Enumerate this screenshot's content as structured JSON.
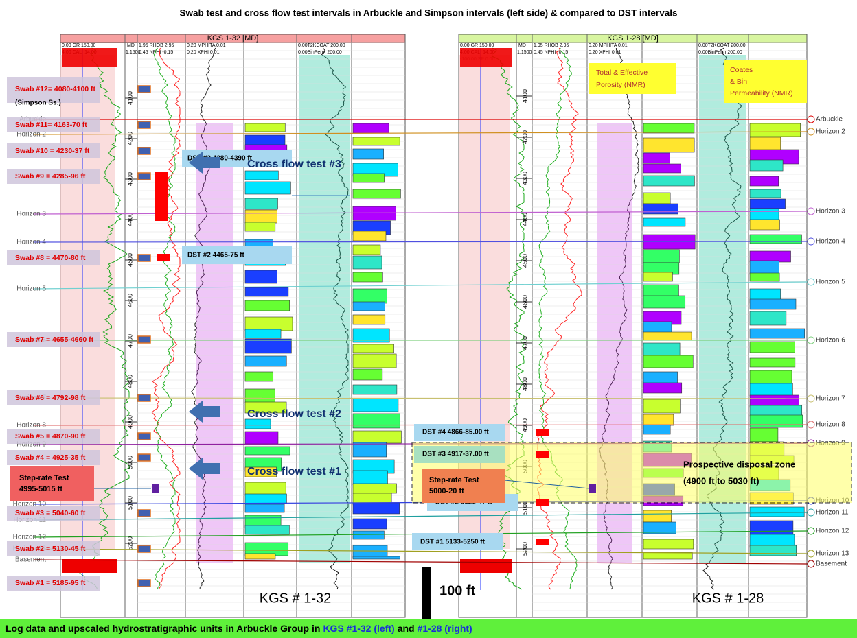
{
  "title": "Swab test and cross flow test intervals in Arbuckle and Simpson intervals (left side) & compared to DST intervals",
  "footer": {
    "text": "Log data and upscaled hydrostratigraphic units in Arbuckle Group in",
    "left_well": "KGS #1-32 (left)",
    "and": "and",
    "right_well": "#1-28 (right)"
  },
  "left_log": {
    "header": "KGS 1-32 [MD]",
    "tracks": [
      "0.00 GR 150.00",
      "4.00 CALI 14.00",
      "MD",
      "1:1500",
      "1.95 RHOB 2.95",
      "0.45 NPHI -0.15",
      "0.20 MPHITA 0.01",
      "0.20 XPHI 0.01",
      "0.00T2KCOAT 200.00",
      "0.00BinPerm 200.00"
    ],
    "depth_ticks": [
      4100,
      4200,
      4300,
      4400,
      4500,
      4600,
      4700,
      4800,
      4900,
      5000,
      5100,
      5200
    ],
    "well": "KGS # 1-32"
  },
  "right_log": {
    "header": "KGS 1-28 [MD]",
    "tracks": [
      "0.00 GR 150.00",
      "4.00 CALI 14.00",
      "-100.00 SP 0.00",
      "MD",
      "1:1500",
      "1.95 RHOB 2.95",
      "0.45 NPHI -0.15",
      "0.20 MPHITA 0.01",
      "0.20 XPHI 0.01",
      "0.00T2KCOAT 200.00",
      "0.00BinPerm 200.00"
    ],
    "depth_ticks": [
      4100,
      4200,
      4300,
      4400,
      4500,
      4600,
      4700,
      4800,
      4900,
      5000,
      5100,
      5200
    ],
    "well": "KGS # 1-28"
  },
  "swabs": [
    "Swab #12= 4080-4100 ft",
    "Swab #11= 4163-70 ft",
    "Swab #10 = 4230-37 ft",
    "Swab #9 = 4285-96 ft",
    "Swab #8 = 4470-80 ft",
    "Swab #7 = 4655-4660 ft",
    "Swab #6 = 4792-98 ft",
    "Swab #5 = 4870-90 ft",
    "Swab #4 = 4925-35 ft",
    "Swab #3 = 5040-60 ft",
    "Swab #2 = 5130-45 ft",
    "Swab #1 = 5185-95 ft"
  ],
  "swab_note": "(Simpson Ss.)",
  "horizons": [
    "Arbuckle",
    "Horizon 2",
    "Horizon 3",
    "Horizon 4",
    "Horizon 5",
    "Horizon 6",
    "Horizon 7",
    "Horizon 8",
    "Horizon 9",
    "Horizon 10",
    "Horizon 11",
    "Horizon 12",
    "Horizon 13",
    "Basement"
  ],
  "left_dst": [
    "DST #3  4280-4390 ft",
    "DST #2  4465-75 ft"
  ],
  "right_dst": [
    "DST #4  4866-85.00 ft",
    "DST #3  4917-37.00 ft",
    "DST #2  5026-47 ft",
    "DST #1  5133-5250 ft"
  ],
  "cross_flow": [
    "Cross flow test #3",
    "Cross flow test #2",
    "Cross flow test #1"
  ],
  "left_step_rate": [
    "Step-rate Test",
    "4995-5015 ft"
  ],
  "right_step_rate": [
    "Step-rate Test",
    "5000-20 ft"
  ],
  "porosity_note": [
    "Total & Effective",
    "Porosity (NMR)"
  ],
  "perm_note": [
    "Coates",
    "& Bin",
    "Permeability (NMR)"
  ],
  "disposal_zone": [
    "Prospective disposal zone",
    "(4900 ft to 5030 ft)"
  ],
  "scale_bar": "100 ft"
}
